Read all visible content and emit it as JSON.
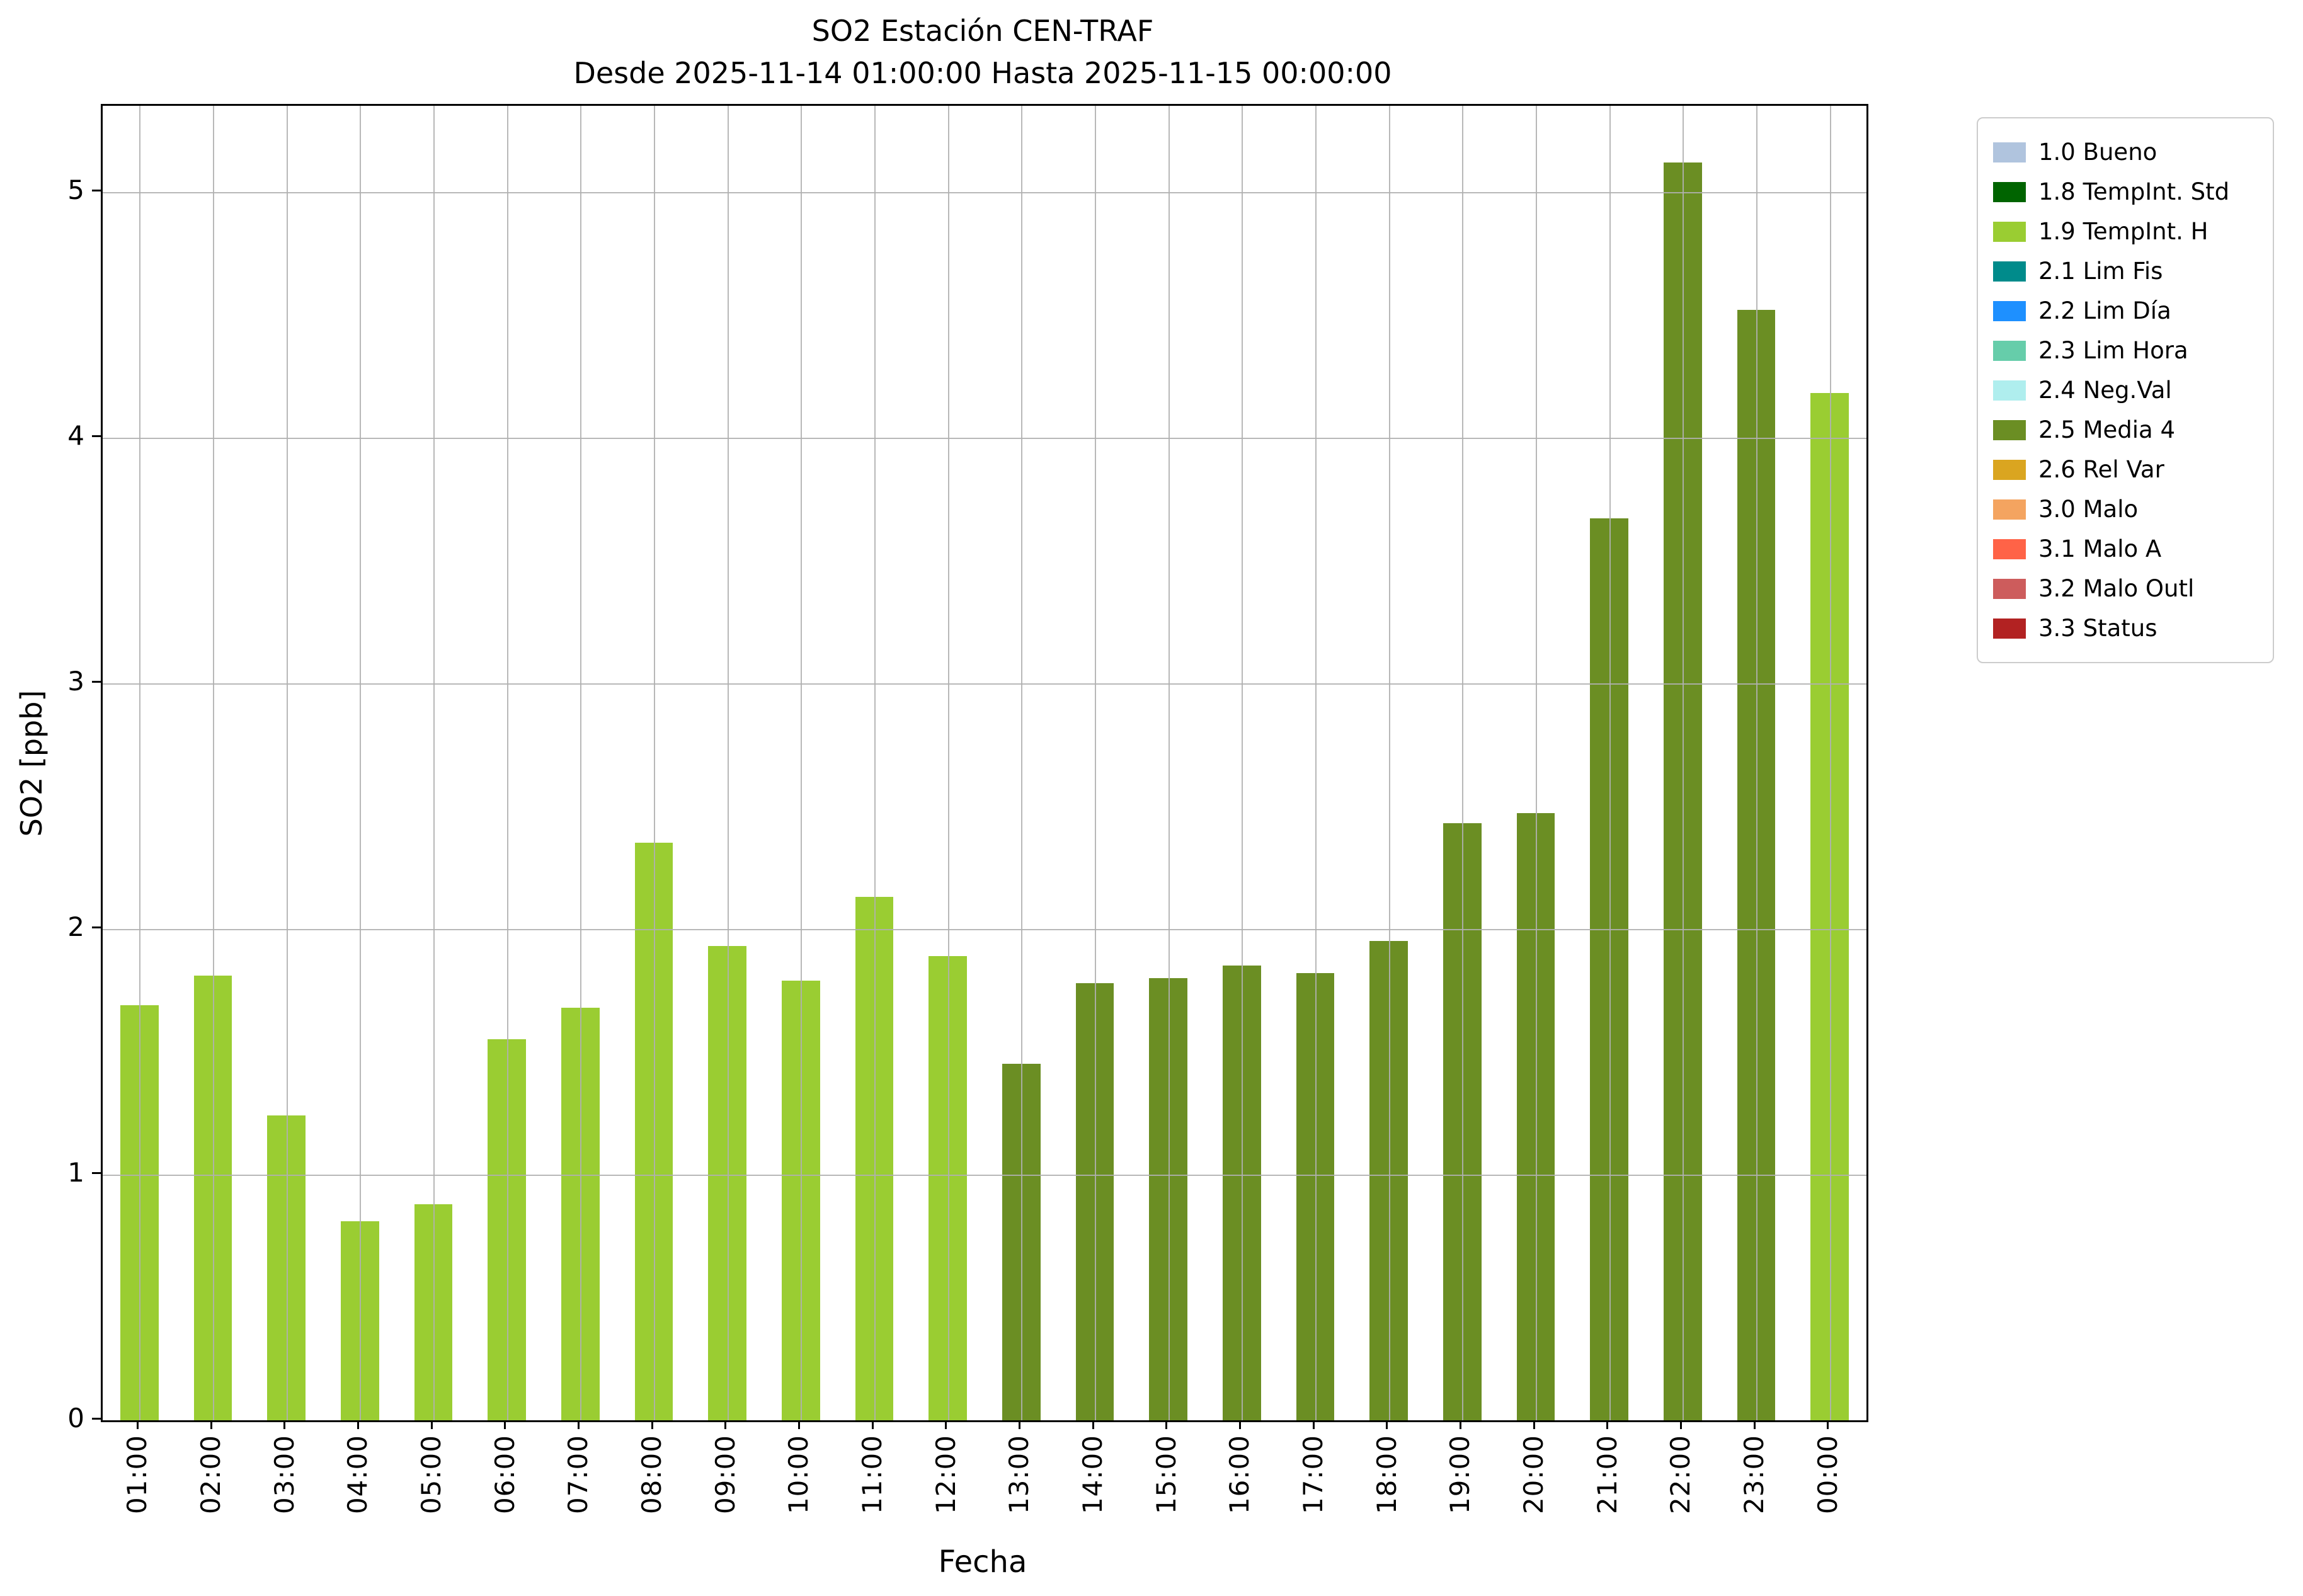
{
  "chart_data": {
    "type": "bar",
    "title": "SO2 Estación CEN-TRAF",
    "subtitle": "Desde 2025-11-14 01:00:00 Hasta 2025-11-15 00:00:00",
    "xlabel": "Fecha",
    "ylabel": "SO2 [ppb]",
    "ylim": [
      0,
      5.35
    ],
    "yticks": [
      0,
      1,
      2,
      3,
      4,
      5
    ],
    "grid": true,
    "categories": [
      "01:00",
      "02:00",
      "03:00",
      "04:00",
      "05:00",
      "06:00",
      "07:00",
      "08:00",
      "09:00",
      "10:00",
      "11:00",
      "12:00",
      "13:00",
      "14:00",
      "15:00",
      "16:00",
      "17:00",
      "18:00",
      "19:00",
      "20:00",
      "21:00",
      "22:00",
      "23:00",
      "00:00"
    ],
    "series": [
      {
        "name": "SO2",
        "values": [
          1.69,
          1.81,
          1.24,
          0.81,
          0.88,
          1.55,
          1.68,
          2.35,
          1.93,
          1.79,
          2.13,
          1.89,
          1.45,
          1.78,
          1.8,
          1.85,
          1.82,
          1.95,
          2.43,
          2.47,
          3.67,
          5.12,
          4.52,
          4.18
        ],
        "color_keys": [
          "1.9 TempInt. H",
          "1.9 TempInt. H",
          "1.9 TempInt. H",
          "1.9 TempInt. H",
          "1.9 TempInt. H",
          "1.9 TempInt. H",
          "1.9 TempInt. H",
          "1.9 TempInt. H",
          "1.9 TempInt. H",
          "1.9 TempInt. H",
          "1.9 TempInt. H",
          "1.9 TempInt. H",
          "2.5 Media 4",
          "2.5 Media 4",
          "2.5 Media 4",
          "2.5 Media 4",
          "2.5 Media 4",
          "2.5 Media 4",
          "2.5 Media 4",
          "2.5 Media 4",
          "2.5 Media 4",
          "2.5 Media 4",
          "2.5 Media 4",
          "1.9 TempInt. H"
        ],
        "colors": [
          "#9acd32",
          "#9acd32",
          "#9acd32",
          "#9acd32",
          "#9acd32",
          "#9acd32",
          "#9acd32",
          "#9acd32",
          "#9acd32",
          "#9acd32",
          "#9acd32",
          "#9acd32",
          "#6b8e23",
          "#6b8e23",
          "#6b8e23",
          "#6b8e23",
          "#6b8e23",
          "#6b8e23",
          "#6b8e23",
          "#6b8e23",
          "#6b8e23",
          "#6b8e23",
          "#6b8e23",
          "#9acd32"
        ]
      }
    ],
    "legend": {
      "position": "top-right",
      "entries": [
        {
          "label": "1.0 Bueno",
          "color": "#b0c4de"
        },
        {
          "label": "1.8 TempInt. Std",
          "color": "#006400"
        },
        {
          "label": "1.9 TempInt. H",
          "color": "#9acd32"
        },
        {
          "label": "2.1 Lim Fis",
          "color": "#008b8b"
        },
        {
          "label": "2.2 Lim Día",
          "color": "#1e90ff"
        },
        {
          "label": "2.3 Lim Hora",
          "color": "#66cdaa"
        },
        {
          "label": "2.4 Neg.Val",
          "color": "#afeeee"
        },
        {
          "label": "2.5 Media 4",
          "color": "#6b8e23"
        },
        {
          "label": "2.6 Rel Var",
          "color": "#daa520"
        },
        {
          "label": "3.0 Malo",
          "color": "#f4a460"
        },
        {
          "label": "3.1 Malo A",
          "color": "#ff6347"
        },
        {
          "label": "3.2 Malo Outl",
          "color": "#cd5c5c"
        },
        {
          "label": "3.3 Status",
          "color": "#b22222"
        }
      ]
    }
  }
}
